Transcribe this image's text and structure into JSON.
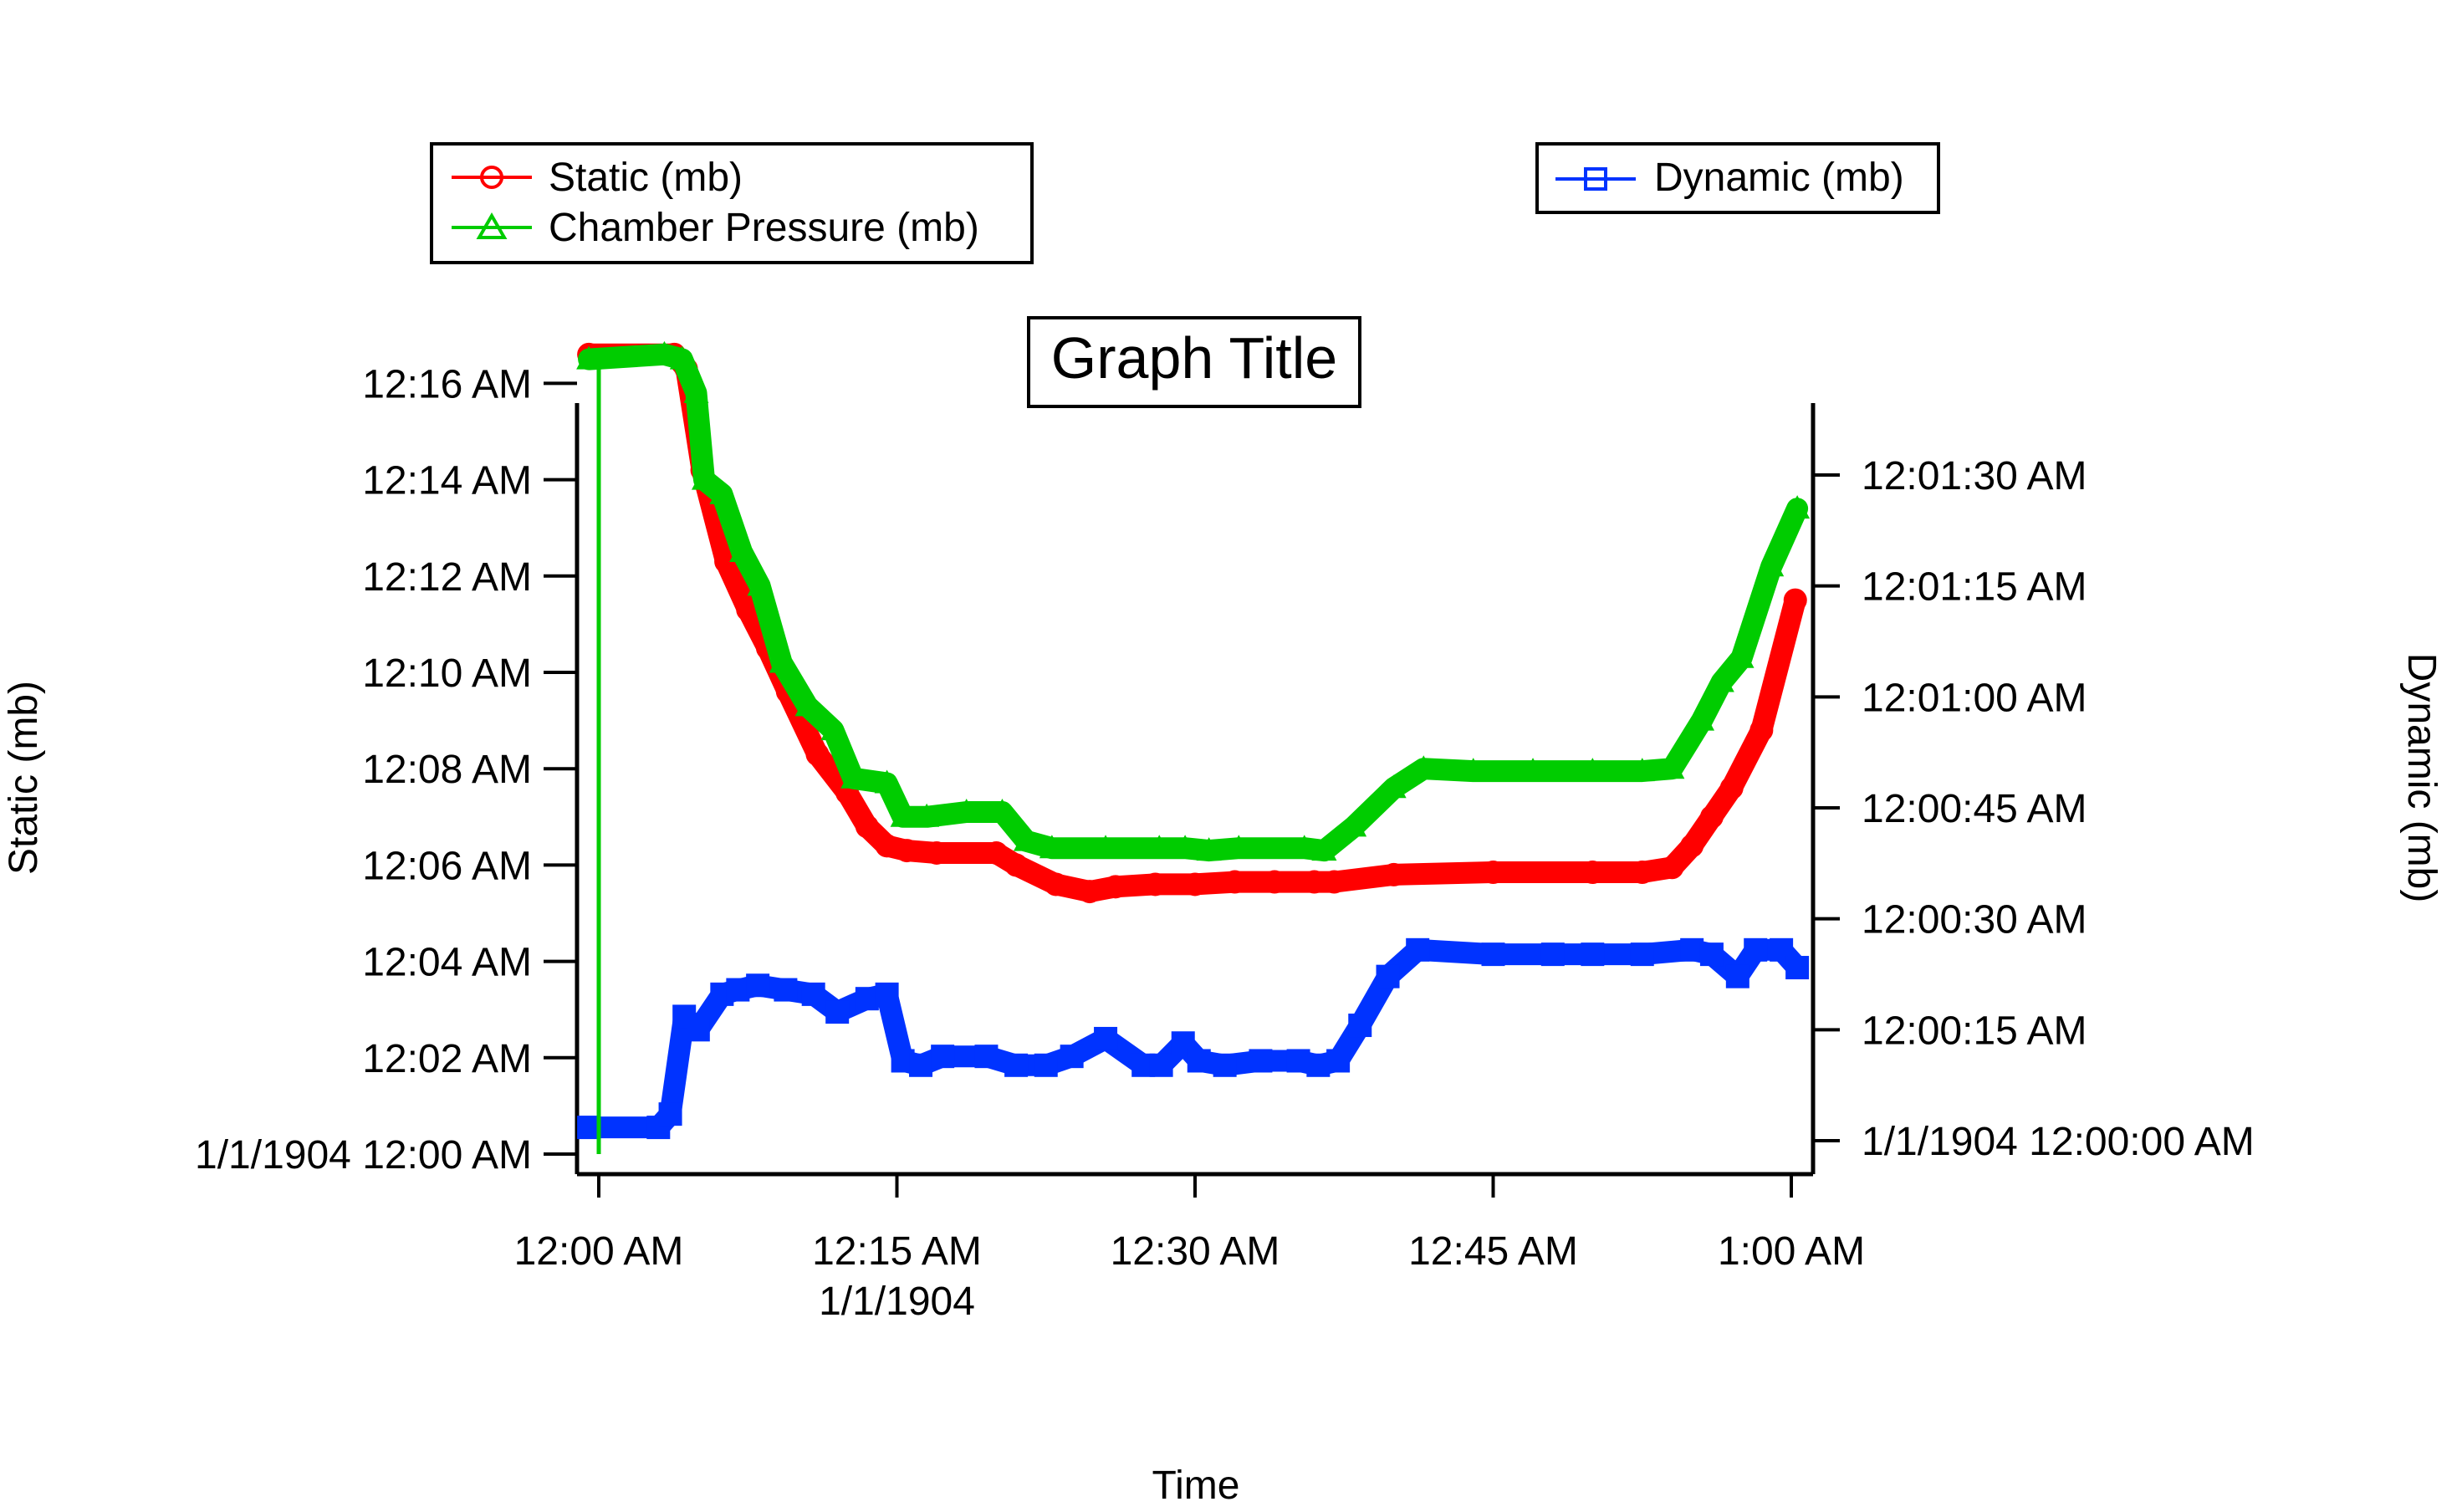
{
  "chart_data": {
    "type": "line",
    "title": "Graph Title",
    "xlabel": "Time",
    "ylabel_left": "Static (mb)",
    "ylabel_right": "Dynamic (mb)",
    "xlim": [
      0,
      60
    ],
    "ylim_left": [
      0,
      16.6
    ],
    "ylim_right": [
      0,
      1.72
    ],
    "x_ticks": [
      {
        "value": 0,
        "label": "12:00 AM",
        "sublabel": ""
      },
      {
        "value": 15,
        "label": "12:15 AM",
        "sublabel": "1/1/1904"
      },
      {
        "value": 30,
        "label": "12:30 AM",
        "sublabel": ""
      },
      {
        "value": 45,
        "label": "12:45 AM",
        "sublabel": ""
      },
      {
        "value": 60,
        "label": "1:00 AM",
        "sublabel": ""
      }
    ],
    "y_left_ticks": [
      {
        "value": 0,
        "label": "1/1/1904 12:00 AM"
      },
      {
        "value": 2,
        "label": "12:02 AM"
      },
      {
        "value": 4,
        "label": "12:04 AM"
      },
      {
        "value": 6,
        "label": "12:06 AM"
      },
      {
        "value": 8,
        "label": "12:08 AM"
      },
      {
        "value": 10,
        "label": "12:10 AM"
      },
      {
        "value": 12,
        "label": "12:12 AM"
      },
      {
        "value": 14,
        "label": "12:14 AM"
      },
      {
        "value": 16,
        "label": "12:16 AM"
      }
    ],
    "y_right_ticks": [
      {
        "value": 0,
        "label": "1/1/1904 12:00:00 AM"
      },
      {
        "value": 0.25,
        "label": "12:00:15 AM"
      },
      {
        "value": 0.5,
        "label": "12:00:30 AM"
      },
      {
        "value": 0.75,
        "label": "12:00:45 AM"
      },
      {
        "value": 1.0,
        "label": "12:01:00 AM"
      },
      {
        "value": 1.25,
        "label": "12:01:15 AM"
      },
      {
        "value": 1.5,
        "label": "12:01:30 AM"
      }
    ],
    "legends": [
      {
        "position": "top-left",
        "entries": [
          {
            "series": 0,
            "label": "Static (mb)"
          },
          {
            "series": 1,
            "label": "Chamber Pressure (mb)"
          }
        ]
      },
      {
        "position": "top-right",
        "entries": [
          {
            "series": 2,
            "label": "Dynamic (mb)"
          }
        ]
      }
    ],
    "series": [
      {
        "name": "Static (mb)",
        "color": "#ff0000",
        "marker": "circle",
        "axis": "left",
        "x": [
          -0.5,
          3.8,
          4.4,
          5.2,
          6.4,
          7.5,
          8.5,
          9.5,
          11.0,
          12.5,
          13.5,
          14.5,
          15.5,
          17,
          20,
          21,
          23,
          24.7,
          26,
          28,
          30,
          32,
          34,
          36,
          37,
          40,
          45,
          50,
          52.5,
          54,
          55,
          56,
          57,
          58.5,
          60.2
        ],
        "y": [
          16.6,
          16.6,
          16.3,
          14.2,
          12.3,
          11.3,
          10.5,
          9.6,
          8.3,
          7.5,
          6.8,
          6.4,
          6.3,
          6.25,
          6.25,
          6.0,
          5.6,
          5.45,
          5.55,
          5.6,
          5.6,
          5.65,
          5.65,
          5.65,
          5.65,
          5.8,
          5.85,
          5.85,
          5.85,
          5.95,
          6.4,
          7.0,
          7.6,
          8.8,
          11.5
        ]
      },
      {
        "name": "Chamber Pressure (mb)",
        "color": "#00cc00",
        "marker": "triangle",
        "axis": "left",
        "x": [
          -0.5,
          3.3,
          4.2,
          4.9,
          5.3,
          6.2,
          7.2,
          8.1,
          9.2,
          10.5,
          11.8,
          12.8,
          14.5,
          15.3,
          16.5,
          18.5,
          20.3,
          21.5,
          22.8,
          25.5,
          28.2,
          29.5,
          30.7,
          32.2,
          35.5,
          36.5,
          38,
          40,
          41.5,
          44,
          47,
          50,
          52.5,
          54,
          55.5,
          56.5,
          57.5,
          59,
          60.3
        ],
        "y": [
          16.5,
          16.6,
          16.5,
          15.8,
          14.0,
          13.7,
          12.5,
          11.8,
          10.2,
          9.3,
          8.8,
          7.8,
          7.7,
          7.0,
          7.0,
          7.1,
          7.1,
          6.5,
          6.35,
          6.35,
          6.35,
          6.35,
          6.3,
          6.35,
          6.35,
          6.3,
          6.8,
          7.6,
          8.0,
          7.95,
          7.95,
          7.95,
          7.95,
          8.0,
          9.0,
          9.8,
          10.3,
          12.2,
          13.4
        ]
      },
      {
        "name": "Dynamic (mb)",
        "color": "#0033ff",
        "marker": "square",
        "axis": "right",
        "x": [
          -0.5,
          3.0,
          3.6,
          4.3,
          5.0,
          6.2,
          7.0,
          8.0,
          9.4,
          10.8,
          12.0,
          13.5,
          14.5,
          15.3,
          16.2,
          17.3,
          19.5,
          21.0,
          22.5,
          23.8,
          25.5,
          27.4,
          28.3,
          29.4,
          30.2,
          31.5,
          33.3,
          35.2,
          36.2,
          37.2,
          38.3,
          39.7,
          41.2,
          45,
          48,
          50,
          52.5,
          55,
          56,
          57.3,
          58.2,
          59.5,
          60.3
        ],
        "y": [
          0.03,
          0.03,
          0.06,
          0.28,
          0.25,
          0.33,
          0.34,
          0.35,
          0.34,
          0.33,
          0.29,
          0.32,
          0.33,
          0.18,
          0.17,
          0.19,
          0.19,
          0.17,
          0.17,
          0.19,
          0.23,
          0.17,
          0.17,
          0.22,
          0.18,
          0.17,
          0.18,
          0.18,
          0.17,
          0.18,
          0.26,
          0.37,
          0.43,
          0.42,
          0.42,
          0.42,
          0.42,
          0.43,
          0.42,
          0.37,
          0.43,
          0.43,
          0.39
        ]
      }
    ]
  }
}
